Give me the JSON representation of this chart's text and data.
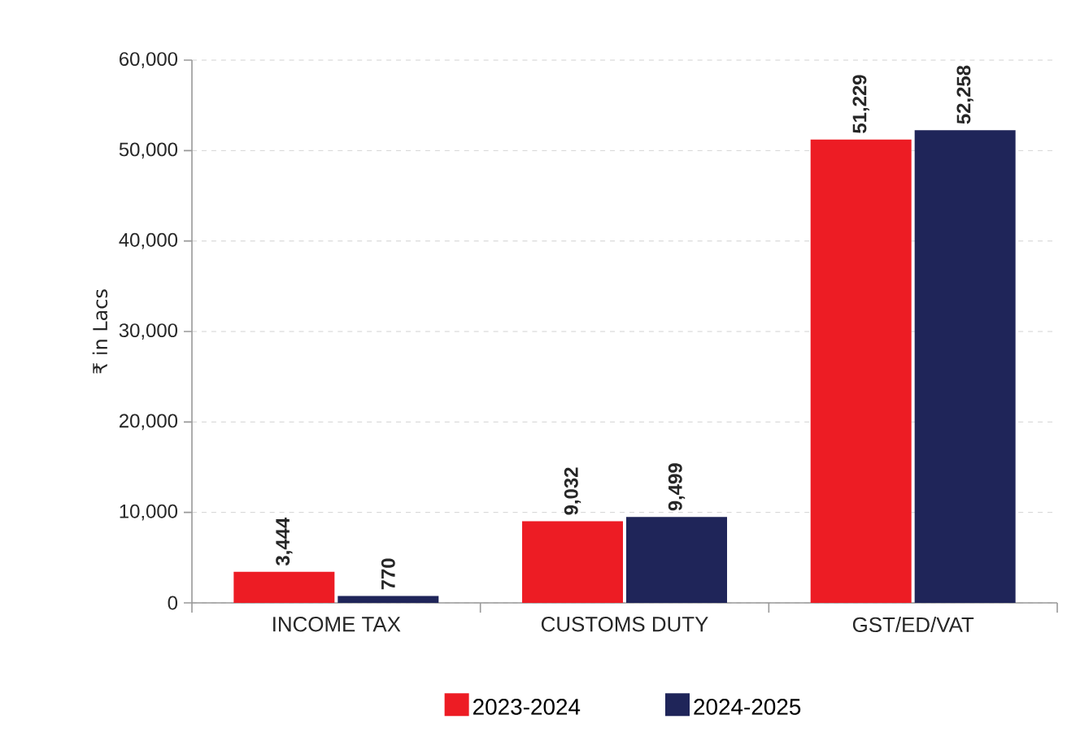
{
  "chart_data": {
    "type": "bar",
    "ylabel": "₹ in Lacs",
    "categories": [
      "INCOME TAX",
      "CUSTOMS DUTY",
      "GST/ED/VAT"
    ],
    "series": [
      {
        "name": "2023-2024",
        "color": "#ed1c24",
        "values": [
          3444,
          9032,
          51229
        ],
        "value_labels": [
          "3,444",
          "9,032",
          "51,229"
        ]
      },
      {
        "name": "2024-2025",
        "color": "#1f2559",
        "values": [
          770,
          9499,
          52258
        ],
        "value_labels": [
          "770",
          "9,499",
          "52,258"
        ]
      }
    ],
    "ylim": [
      0,
      60000
    ],
    "yticks": [
      {
        "value": 0,
        "label": "0"
      },
      {
        "value": 10000,
        "label": "10,000"
      },
      {
        "value": 20000,
        "label": "20,000"
      },
      {
        "value": 30000,
        "label": "30,000"
      },
      {
        "value": 40000,
        "label": "40,000"
      },
      {
        "value": 50000,
        "label": "50,000"
      },
      {
        "value": 60000,
        "label": "60,000"
      }
    ],
    "grid": "y",
    "legend": "bottom"
  }
}
